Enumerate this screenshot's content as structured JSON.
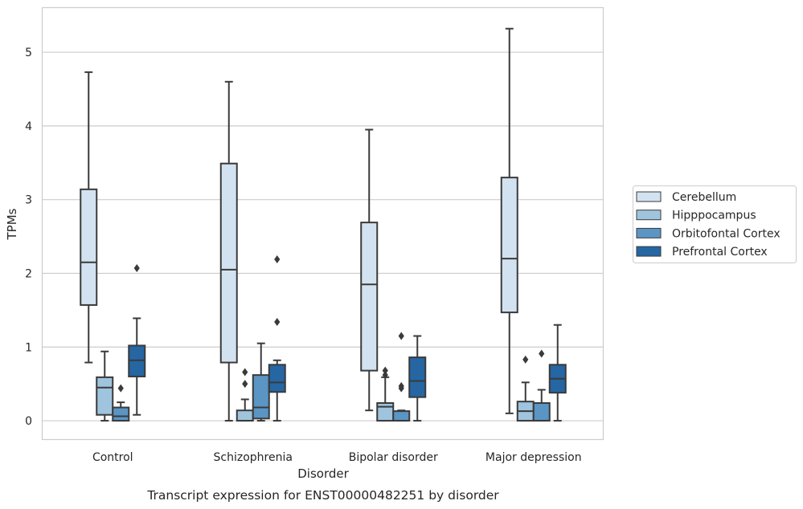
{
  "chart_data": {
    "type": "box",
    "title": "Transcript expression for ENST00000482251 by disorder",
    "xlabel": "Disorder",
    "ylabel": "TPMs",
    "ylim": [
      -0.25,
      5.6
    ],
    "yticks": [
      0,
      1,
      2,
      3,
      4,
      5
    ],
    "grid": "horizontal",
    "legend_position": "right",
    "categories": [
      "Control",
      "Schizophrenia",
      "Bipolar disorder",
      "Major depression"
    ],
    "series": [
      {
        "name": "Cerebellum",
        "color": "#d3e2f0",
        "boxes": [
          {
            "whisker_low": 0.79,
            "q1": 1.57,
            "median": 2.15,
            "q3": 3.14,
            "whisker_high": 4.73,
            "outliers": []
          },
          {
            "whisker_low": 0.0,
            "q1": 0.79,
            "median": 2.05,
            "q3": 3.49,
            "whisker_high": 4.6,
            "outliers": []
          },
          {
            "whisker_low": 0.14,
            "q1": 0.68,
            "median": 1.85,
            "q3": 2.69,
            "whisker_high": 3.95,
            "outliers": []
          },
          {
            "whisker_low": 0.1,
            "q1": 1.47,
            "median": 2.2,
            "q3": 3.3,
            "whisker_high": 5.32,
            "outliers": []
          }
        ]
      },
      {
        "name": "Hipppocampus",
        "color": "#9fc4de",
        "boxes": [
          {
            "whisker_low": 0.0,
            "q1": 0.08,
            "median": 0.45,
            "q3": 0.59,
            "whisker_high": 0.94,
            "outliers": []
          },
          {
            "whisker_low": 0.0,
            "q1": 0.0,
            "median": 0.0,
            "q3": 0.14,
            "whisker_high": 0.29,
            "outliers": [
              0.5,
              0.66
            ]
          },
          {
            "whisker_low": 0.0,
            "q1": 0.0,
            "median": 0.19,
            "q3": 0.24,
            "whisker_high": 0.59,
            "outliers": [
              0.62,
              0.68
            ]
          },
          {
            "whisker_low": 0.0,
            "q1": 0.0,
            "median": 0.13,
            "q3": 0.26,
            "whisker_high": 0.52,
            "outliers": [
              0.83
            ]
          }
        ]
      },
      {
        "name": "Orbitofontal Cortex",
        "color": "#5a95c4",
        "boxes": [
          {
            "whisker_low": 0.0,
            "q1": 0.0,
            "median": 0.06,
            "q3": 0.18,
            "whisker_high": 0.25,
            "outliers": [
              0.44
            ]
          },
          {
            "whisker_low": 0.0,
            "q1": 0.03,
            "median": 0.18,
            "q3": 0.62,
            "whisker_high": 1.05,
            "outliers": []
          },
          {
            "whisker_low": 0.0,
            "q1": 0.0,
            "median": 0.0,
            "q3": 0.13,
            "whisker_high": 0.14,
            "outliers": [
              0.44,
              0.47,
              1.15
            ]
          },
          {
            "whisker_low": 0.0,
            "q1": 0.0,
            "median": 0.0,
            "q3": 0.24,
            "whisker_high": 0.42,
            "outliers": [
              0.91
            ]
          }
        ]
      },
      {
        "name": "Prefrontal Cortex",
        "color": "#2566a3",
        "boxes": [
          {
            "whisker_low": 0.08,
            "q1": 0.6,
            "median": 0.82,
            "q3": 1.02,
            "whisker_high": 1.39,
            "outliers": [
              2.07
            ]
          },
          {
            "whisker_low": 0.0,
            "q1": 0.39,
            "median": 0.52,
            "q3": 0.76,
            "whisker_high": 0.82,
            "outliers": [
              1.34,
              2.19
            ]
          },
          {
            "whisker_low": 0.0,
            "q1": 0.32,
            "median": 0.54,
            "q3": 0.86,
            "whisker_high": 1.15,
            "outliers": []
          },
          {
            "whisker_low": 0.0,
            "q1": 0.38,
            "median": 0.57,
            "q3": 0.76,
            "whisker_high": 1.3,
            "outliers": []
          }
        ]
      }
    ]
  },
  "colors": {
    "edge": "#3a3a3a",
    "grid": "#cccccc",
    "frame": "#cccccc",
    "text": "#262626"
  }
}
